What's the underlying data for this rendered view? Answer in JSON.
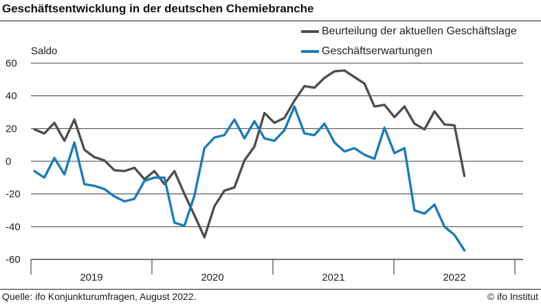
{
  "header": {
    "title": "Geschäftsentwicklung in der deutschen Chemiebranche"
  },
  "footer": {
    "source": "Quelle: ifo Konjunkturumfragen, August 2022.",
    "credit": "© ifo Institut"
  },
  "colors": {
    "lage": "#4d4d4d",
    "erwartungen": "#1a7bb5"
  },
  "chart_data": {
    "type": "line",
    "ylabel": "Saldo",
    "ylim": [
      -60,
      60
    ],
    "yticks": [
      60,
      40,
      20,
      0,
      -20,
      -40,
      -60
    ],
    "year_labels": [
      "2019",
      "2020",
      "2021",
      "2022"
    ],
    "x_start": "2019-01",
    "x_end": "2022-08",
    "series": [
      {
        "name": "Beurteilung der aktuellen Geschäftslage",
        "values": [
          19.5,
          17,
          23.5,
          12.5,
          25.5,
          7,
          2.5,
          0.5,
          -5.5,
          -6,
          -4,
          -11,
          -6,
          -14,
          -6,
          -20,
          -33,
          -46.5,
          -27.5,
          -18,
          -16,
          0.5,
          9,
          29.5,
          23.5,
          26.5,
          37,
          46,
          45,
          51,
          55,
          55.5,
          51.5,
          47.5,
          33.5,
          34.5,
          27,
          33.5,
          23,
          19.5,
          30.5,
          22.5,
          22,
          -9
        ]
      },
      {
        "name": "Geschäftserwartungen",
        "values": [
          -6,
          -10,
          2,
          -8,
          11.5,
          -14,
          -15,
          -17,
          -21.5,
          -24.5,
          -23,
          -12,
          -10,
          -10,
          -37.5,
          -39.5,
          -21,
          8,
          14.5,
          16,
          25.5,
          14,
          24.5,
          14,
          12.5,
          19,
          33.5,
          17,
          16,
          23,
          11.5,
          6,
          8,
          4,
          1.5,
          20.5,
          5,
          8,
          -30,
          -32,
          -26.5,
          -40,
          -45,
          -54.5
        ]
      }
    ]
  }
}
